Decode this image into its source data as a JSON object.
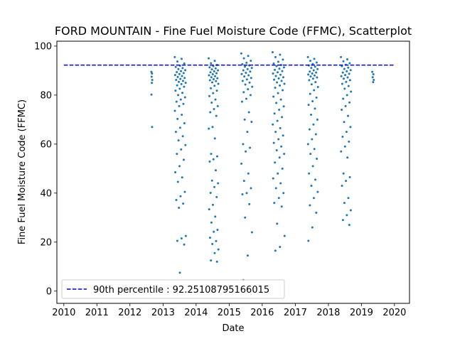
{
  "chart_data": {
    "type": "scatter",
    "title": "FORD MOUNTAIN - Fine Fuel Moisture Code (FFMC), Scatterplot",
    "xlabel": "Date",
    "ylabel": "Fine Fuel Moisture Code (FFMC)",
    "xlim": [
      "2009-10-16",
      "2020-06-15"
    ],
    "ylim": [
      -5,
      102
    ],
    "x_ticks": [
      "2010",
      "2011",
      "2012",
      "2013",
      "2014",
      "2015",
      "2016",
      "2017",
      "2018",
      "2019",
      "2020"
    ],
    "y_ticks": [
      0,
      20,
      40,
      60,
      80,
      100
    ],
    "grid": false,
    "legend_position": "lower-left",
    "colors": {
      "points": "#1f77b4",
      "reference_line": "#0000cc"
    },
    "reference_line": {
      "label": "90th percentile : 92.25108795166015",
      "value": 92.25108795166015,
      "x_range": [
        "2010-01-01",
        "2020-01-01"
      ],
      "style": "dashed"
    },
    "point_clusters": [
      {
        "x_range": [
          "2012-08-25",
          "2012-09-05"
        ],
        "y_values": [
          89.5,
          88.8,
          87.5,
          86.2,
          85.0,
          80.2,
          67.0
        ]
      },
      {
        "x_range": [
          "2013-05-10",
          "2013-09-10"
        ],
        "y_values": [
          95.5,
          94.8,
          93.7,
          92.9,
          92.0,
          91.5,
          91.0,
          90.6,
          90.2,
          89.8,
          89.4,
          89.0,
          88.6,
          88.2,
          87.8,
          87.4,
          87.0,
          86.6,
          86.2,
          85.8,
          85.4,
          85.0,
          84.5,
          84.0,
          83.4,
          82.6,
          81.8,
          80.9,
          80.0,
          79.1,
          78.2,
          77.3,
          76.4,
          75.5,
          73.6,
          72.0,
          70.3,
          68.5,
          66.7,
          65.0,
          63.2,
          61.5,
          59.6,
          57.8,
          56.0,
          53.6,
          51.0,
          48.5,
          46.4,
          44.6,
          40.5,
          38.7,
          37.2,
          35.7,
          34.0,
          22.5,
          21.5,
          20.5,
          19.0,
          7.5
        ]
      },
      {
        "x_range": [
          "2014-05-20",
          "2014-09-05"
        ],
        "y_values": [
          95.0,
          94.0,
          93.0,
          92.3,
          91.8,
          91.3,
          90.9,
          90.5,
          90.1,
          89.7,
          89.3,
          88.9,
          88.5,
          88.1,
          87.7,
          87.3,
          86.9,
          86.5,
          86.1,
          85.7,
          85.2,
          84.6,
          83.8,
          82.8,
          81.8,
          80.8,
          79.6,
          78.2,
          76.9,
          75.5,
          74.3,
          73.0,
          71.5,
          67.0,
          66.3,
          62.3,
          56.0,
          55.0,
          53.8,
          52.9,
          49.3,
          45.1,
          44.0,
          42.5,
          40.1,
          38.4,
          35.2,
          33.4,
          30.4,
          28.0,
          25.0,
          24.2,
          21.8,
          20.4,
          19.2,
          17.0,
          15.5,
          12.5,
          12.0
        ]
      },
      {
        "x_range": [
          "2015-05-15",
          "2015-09-15"
        ],
        "y_values": [
          97.0,
          96.0,
          95.0,
          94.0,
          93.2,
          92.6,
          92.1,
          91.6,
          91.1,
          90.6,
          90.1,
          89.6,
          89.1,
          88.6,
          88.1,
          87.6,
          87.0,
          86.4,
          85.8,
          85.1,
          84.3,
          83.4,
          82.4,
          81.2,
          80.0,
          78.5,
          77.3,
          73.0,
          70.0,
          69.1,
          65.0,
          60.0,
          58.5,
          57.0,
          52.0,
          48.0,
          45.0,
          42.0,
          40.0,
          39.5,
          35.5,
          30.0,
          24.0,
          14.5,
          4.5
        ]
      },
      {
        "x_range": [
          "2016-04-25",
          "2016-09-05"
        ],
        "y_values": [
          97.5,
          96.5,
          95.5,
          94.5,
          93.6,
          92.9,
          92.3,
          91.8,
          91.3,
          90.8,
          90.3,
          89.8,
          89.3,
          88.8,
          88.3,
          87.8,
          87.3,
          86.8,
          86.3,
          85.8,
          85.2,
          84.6,
          83.9,
          83.0,
          82.0,
          80.8,
          79.4,
          78.2,
          76.8,
          75.4,
          74.0,
          72.5,
          71.0,
          69.5,
          68.0,
          66.5,
          65.0,
          63.5,
          62.0,
          60.5,
          59.0,
          57.5,
          56.0,
          54.5,
          52.5,
          50.0,
          48.0,
          46.0,
          44.0,
          42.0,
          40.0,
          38.0,
          36.0,
          34.5,
          27.5,
          22.5,
          18.0,
          16.5
        ]
      },
      {
        "x_range": [
          "2017-05-20",
          "2017-09-10"
        ],
        "y_values": [
          95.5,
          94.8,
          94.0,
          93.3,
          92.7,
          92.1,
          91.6,
          91.1,
          90.6,
          90.1,
          89.6,
          89.2,
          88.8,
          88.4,
          88.0,
          87.6,
          87.2,
          86.7,
          86.1,
          85.3,
          84.4,
          83.3,
          82.0,
          80.5,
          79.0,
          77.5,
          76.0,
          74.5,
          72.0,
          70.0,
          68.0,
          66.0,
          64.0,
          62.0,
          60.0,
          58.0,
          56.0,
          54.0,
          51.0,
          48.0,
          45.5,
          43.0,
          40.5,
          38.0,
          35.0,
          32.0,
          26.0,
          20.5
        ]
      },
      {
        "x_range": [
          "2018-05-20",
          "2018-09-10"
        ],
        "y_values": [
          95.5,
          94.6,
          93.8,
          93.0,
          92.4,
          91.8,
          91.2,
          90.7,
          90.2,
          89.7,
          89.2,
          88.7,
          88.2,
          87.7,
          87.2,
          86.7,
          86.1,
          85.4,
          84.6,
          83.7,
          82.6,
          81.4,
          80.0,
          78.5,
          77.0,
          75.5,
          74.0,
          71.5,
          69.0,
          67.0,
          65.0,
          63.0,
          61.0,
          59.0,
          57.0,
          54.5,
          48.0,
          46.5,
          45.0,
          43.0,
          38.0,
          36.0,
          33.0,
          31.0,
          29.0,
          27.0
        ]
      },
      {
        "x_range": [
          "2019-05-01",
          "2019-05-20"
        ],
        "y_values": [
          89.5,
          88.5,
          87.3,
          86.2,
          85.3
        ]
      }
    ]
  }
}
